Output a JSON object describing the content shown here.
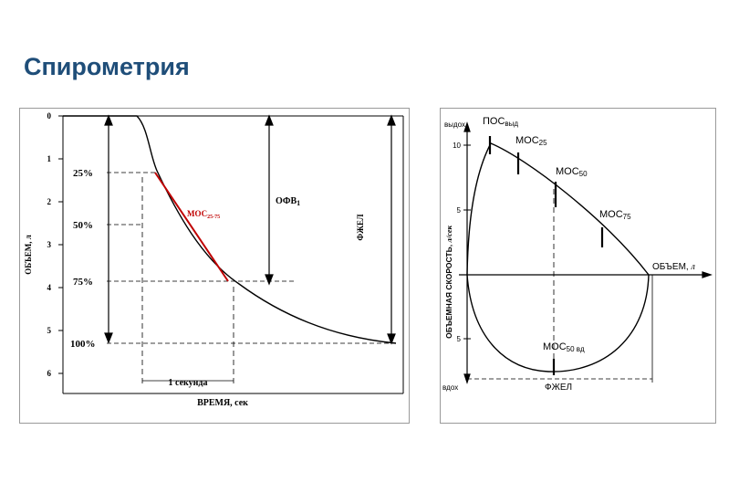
{
  "slide": {
    "title": "Спирометрия"
  },
  "volume_time": {
    "y_ticks": [
      "0",
      "1",
      "2",
      "3",
      "4",
      "5",
      "6"
    ],
    "y_axis_label": "ОБЪЕМ, л",
    "x_axis_label": "ВРЕМЯ, сек",
    "pct_labels": [
      "25%",
      "50%",
      "75%",
      "100%"
    ],
    "one_second_label": "1 секунда",
    "mos_label": "МОС",
    "mos_sub": "25-75",
    "ofv_label": "ОФВ",
    "ofv_sub": "1",
    "fzhel_label": "ФЖЕЛ"
  },
  "flow_volume": {
    "exhale_label": "выдох",
    "inhale_label": "вдох",
    "y_ticks": [
      "10",
      "5",
      "5"
    ],
    "y_axis_label": "ОБЪЕМНАЯ СКОРОСТЬ,",
    "y_axis_unit": "л/сек",
    "x_axis_label": "ОБЪЕМ,",
    "x_axis_unit": "л",
    "pos_label": "ПОС",
    "pos_sub": "выд",
    "mos25_label": "МОС",
    "mos25_sub": "25",
    "mos50_label": "МОС",
    "mos50_sub": "50",
    "mos75_label": "МОС",
    "mos75_sub": "75",
    "mos50_insp_label": "МОС",
    "mos50_insp_sub": "50 вд",
    "fzhel_label": "ФЖЕЛ"
  },
  "colors": {
    "title": "#1f4e79",
    "mos_line": "#c00000",
    "mos_text": "#c00000"
  }
}
